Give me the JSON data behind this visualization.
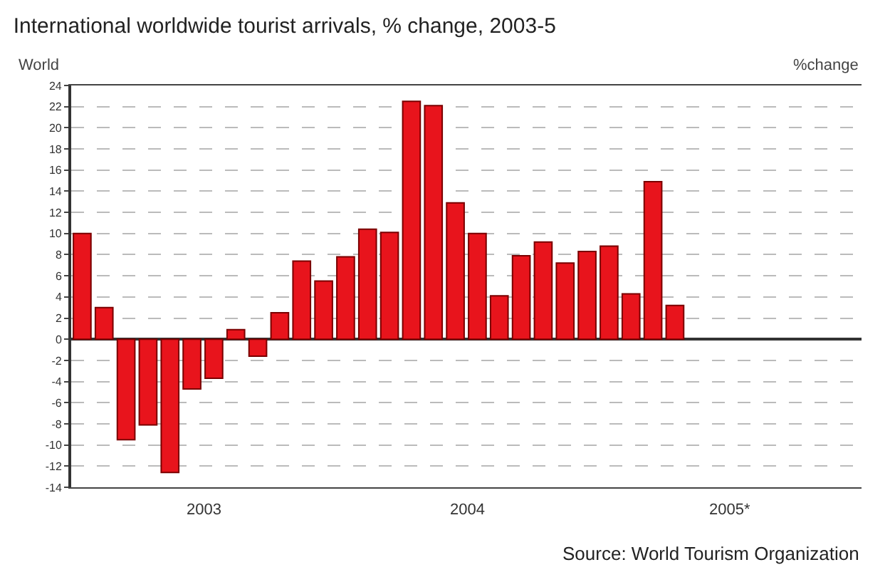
{
  "chart_data": {
    "type": "bar",
    "title": "International worldwide tourist arrivals, % change, 2003-5",
    "ylabel": "World",
    "annotations": [
      "2003",
      "2004",
      "2005*",
      "%change",
      "Source: World Tourism Organization"
    ],
    "categories": [
      null,
      null,
      null,
      null,
      null,
      null,
      null,
      null,
      null,
      null,
      null,
      null,
      null,
      null,
      null,
      null,
      null,
      null,
      null,
      null,
      null,
      null,
      null,
      null,
      null,
      null,
      null,
      null,
      null,
      null,
      null,
      null,
      null,
      null,
      null,
      null
    ],
    "values": [
      10,
      3,
      -9.5,
      -8.1,
      -12.6,
      -4.7,
      -3.7,
      0.9,
      -1.6,
      2.5,
      7.4,
      5.5,
      7.8,
      10.4,
      10.1,
      22.5,
      22.1,
      12.9,
      10,
      4.1,
      7.9,
      9.2,
      7.2,
      8.3,
      8.8,
      4.3,
      14.9,
      3.2,
      null,
      null,
      null,
      null,
      null,
      null,
      null,
      null
    ],
    "color": "#e8141c",
    "ylim": [
      -14,
      24
    ],
    "yticks": [
      -14,
      -12,
      -10,
      -8,
      -6,
      -4,
      -2,
      0,
      2,
      4,
      6,
      8,
      10,
      12,
      14,
      16,
      18,
      20,
      22,
      24
    ],
    "grid": "y",
    "legend": false
  }
}
